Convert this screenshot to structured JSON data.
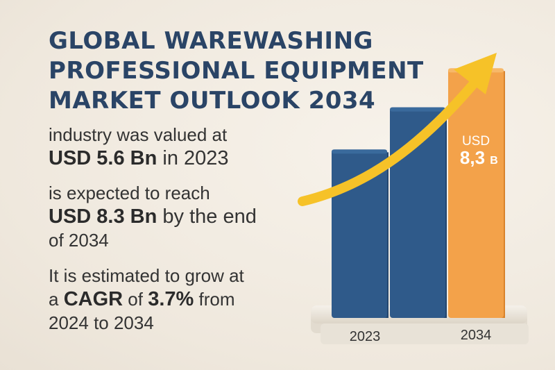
{
  "title_lines": [
    "GLOBAL WAREWASHING",
    "PROFESSIONAL EQUIPMENT",
    "MARKET OUTLOOK 2034"
  ],
  "stats": {
    "line1": "industry was valued at",
    "value_2023_bold": "USD 5.6 Bn",
    "value_2023_rest": " in 2023",
    "line3": "is expected to reach",
    "value_2034_bold": "USD 8.3 Bn",
    "value_2034_rest": " by the end",
    "value_2034_rest2": "of 2034",
    "growth_line1": "It is estimated to grow at",
    "growth_a": "a ",
    "growth_cagr_bold": "CAGR",
    "growth_of": " of ",
    "growth_pct_bold": "3.7%",
    "growth_from": " from",
    "growth_range": "2024 to 2034"
  },
  "chart_data": {
    "type": "bar",
    "categories": [
      "2023",
      "",
      "2034"
    ],
    "values": [
      5.6,
      7.0,
      8.3
    ],
    "colors": [
      "#2f5a8a",
      "#2f5a8a",
      "#f3a24a"
    ],
    "bar_label_top": "USD",
    "bar_label_value": "8,3",
    "bar_label_unit": "B",
    "axis_labels": [
      "2023",
      "2034"
    ],
    "ylim": [
      0,
      9
    ],
    "trend_arrow": true,
    "arrow_color": "#f6c228"
  }
}
